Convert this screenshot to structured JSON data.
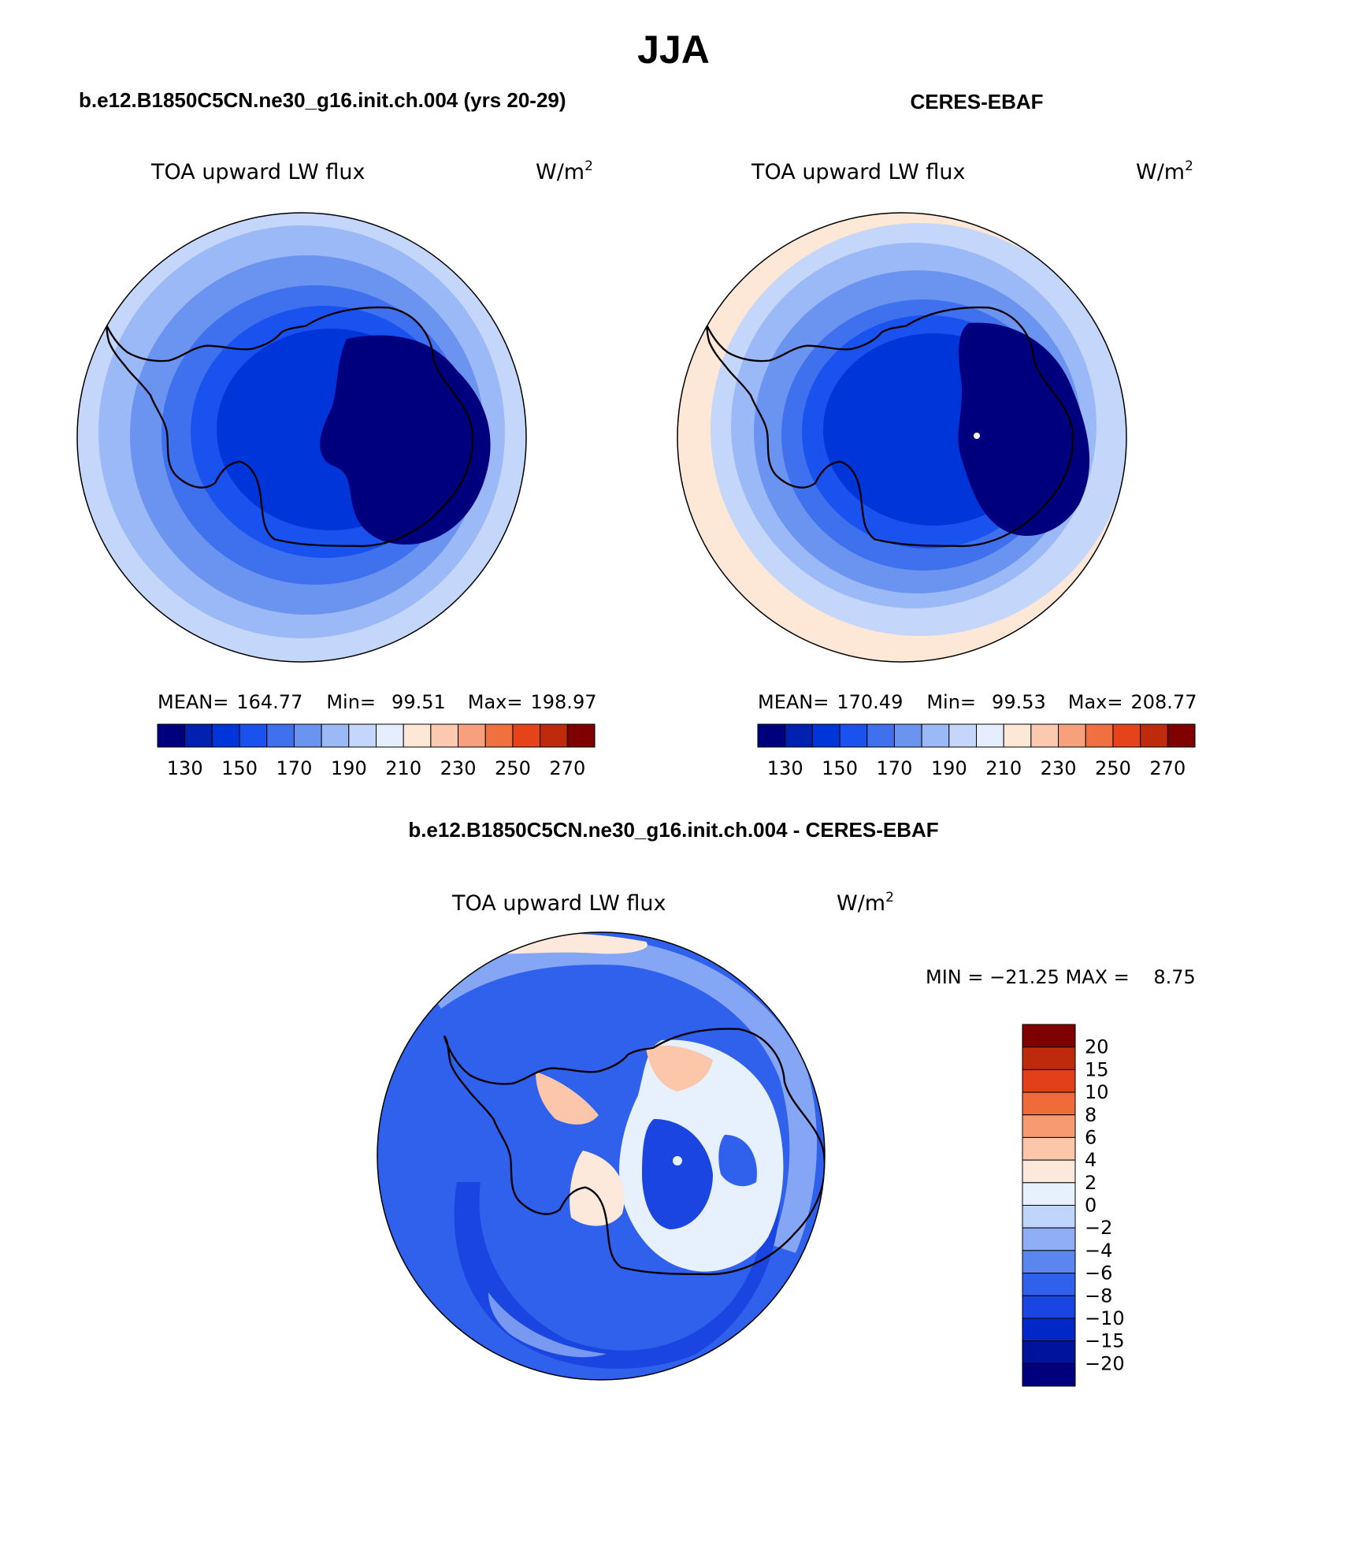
{
  "figure": {
    "season": "JJA",
    "model_title": "b.e12.B1850C5CN.ne30_g16.init.ch.004 (yrs 20-29)",
    "obs_title": "CERES-EBAF",
    "diff_title": "b.e12.B1850C5CN.ne30_g16.init.ch.004 - CERES-EBAF"
  },
  "colors": {
    "abs_palette": [
      "#00007f",
      "#0021b0",
      "#0036d9",
      "#1a52f0",
      "#3f70ed",
      "#6b93f0",
      "#9bb8f7",
      "#c4d7fa",
      "#e5eefc",
      "#fde7d6",
      "#fbc9b0",
      "#f7a07b",
      "#f17040",
      "#e6431b",
      "#bd2a0c",
      "#7f0000"
    ],
    "diff_palette": [
      "#00007f",
      "#00139c",
      "#0028c8",
      "#1a45e0",
      "#2f61ec",
      "#5b86f0",
      "#8faef6",
      "#c0d5fa",
      "#e7f0fd",
      "#fde9dc",
      "#fbc6aa",
      "#f79a72",
      "#f16b3a",
      "#e2401b",
      "#bd2a0c",
      "#7f0000"
    ],
    "coast": "#000000"
  },
  "chart_data": [
    {
      "id": "model",
      "type": "polar-contour-map",
      "title": "b.e12.B1850C5CN.ne30_g16.init.ch.004 (yrs 20-29)",
      "left_label": "TOA upward LW flux",
      "right_label_base": "W/m",
      "right_label_sup": "2",
      "stats": {
        "mean_label": "MEAN=",
        "mean": "164.77",
        "min_label": "Min=",
        "min": "99.51",
        "max_label": "Max=",
        "max": "198.97"
      },
      "colorbar": {
        "orientation": "horizontal",
        "ticks": [
          "130",
          "150",
          "170",
          "190",
          "210",
          "230",
          "250",
          "270"
        ]
      },
      "field": {
        "rings": [
          130,
          140,
          150,
          160,
          170,
          180,
          190
        ]
      }
    },
    {
      "id": "obs",
      "type": "polar-contour-map",
      "title": "CERES-EBAF",
      "left_label": "TOA upward LW flux",
      "right_label_base": "W/m",
      "right_label_sup": "2",
      "stats": {
        "mean_label": "MEAN=",
        "mean": "170.49",
        "min_label": "Min=",
        "min": "99.53",
        "max_label": "Max=",
        "max": "208.77"
      },
      "colorbar": {
        "orientation": "horizontal",
        "ticks": [
          "130",
          "150",
          "170",
          "190",
          "210",
          "230",
          "250",
          "270"
        ]
      },
      "field": {
        "rings": [
          130,
          140,
          150,
          160,
          170,
          180,
          190,
          200
        ]
      }
    },
    {
      "id": "diff",
      "type": "polar-contour-map",
      "title": "b.e12.B1850C5CN.ne30_g16.init.ch.004 - CERES-EBAF",
      "left_label": "TOA upward LW flux",
      "right_label_base": "W/m",
      "right_label_sup": "2",
      "stats_text": "MIN = −21.25 MAX =    8.75",
      "min": -21.25,
      "max": 8.75,
      "colorbar": {
        "orientation": "vertical",
        "ticks": [
          "20",
          "15",
          "10",
          "8",
          "6",
          "4",
          "2",
          "0",
          "−2",
          "−4",
          "−6",
          "−8",
          "−10",
          "−15",
          "−20"
        ]
      }
    }
  ]
}
